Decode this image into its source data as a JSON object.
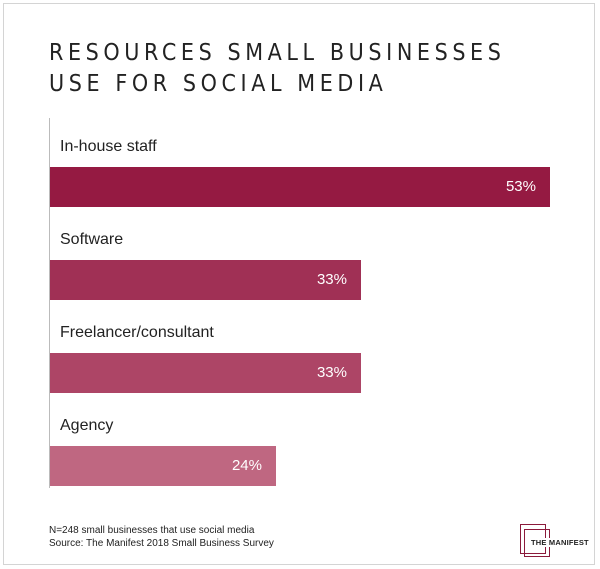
{
  "chart_data": {
    "type": "bar",
    "orientation": "horizontal",
    "title": "RESOURCES SMALL BUSINESSES\nUSE FOR SOCIAL MEDIA",
    "categories": [
      "In-house staff",
      "Software",
      "Freelancer/consultant",
      "Agency"
    ],
    "values": [
      53,
      33,
      33,
      24
    ],
    "value_labels": [
      "53%",
      "33%",
      "33%",
      "24%"
    ],
    "unit": "%",
    "bar_colors": [
      "#951a42",
      "#a03055",
      "#ad4566",
      "#bf6781"
    ],
    "xlim": [
      0,
      53
    ],
    "grid": false,
    "legend": "none"
  },
  "footnote": {
    "line1": "N=248 small businesses that use social media",
    "line2": "Source: The Manifest 2018 Small Business Survey"
  },
  "logo": {
    "text": "THE MANIFEST",
    "color": "#8b1a3b"
  }
}
